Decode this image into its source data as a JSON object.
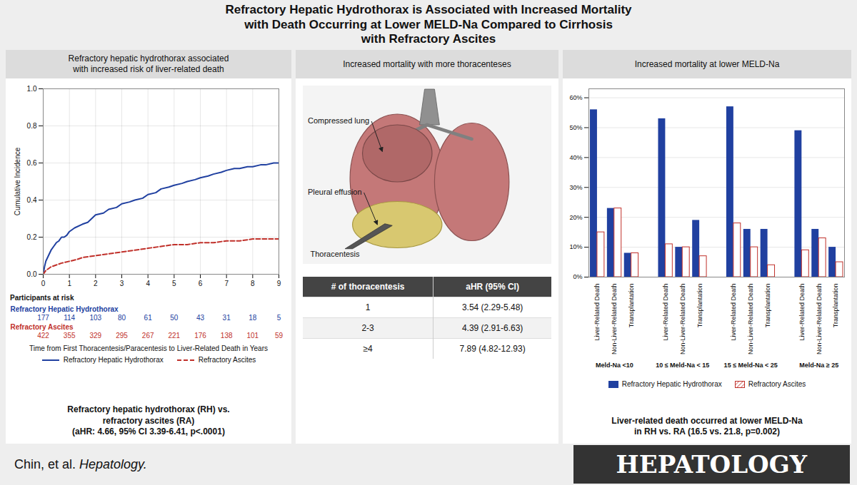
{
  "title": "Refractory Hepatic Hydrothorax is Associated with Increased Mortality\nwith Death Occurring at Lower MELD-Na Compared to Cirrhosis\nwith Refractory Ascites",
  "annotations": [
    "Chin, et al.",
    "Hepatology.",
    "HEPATOLOGY"
  ],
  "chart_data": [
    {
      "type": "line",
      "subtitle": "Refractory hepatic hydrothorax associated\nwith increased risk of liver-related death",
      "xlabel": "Time from First Thoracentesis/Paracentesis to Liver-Related Death in Years",
      "ylabel": "Cumulative Incidence",
      "xlim": [
        0,
        9
      ],
      "xticks": [
        0,
        1,
        2,
        3,
        4,
        5,
        6,
        7,
        8,
        9
      ],
      "ylim": [
        0,
        1.0
      ],
      "yticks": [
        {
          "value": 0.0,
          "label": "0.0"
        },
        {
          "value": 0.2,
          "label": "0.2"
        },
        {
          "value": 0.4,
          "label": "0.4"
        },
        {
          "value": 0.6,
          "label": "0.6"
        },
        {
          "value": 0.8,
          "label": "0.8"
        },
        {
          "value": 1.0,
          "label": "1.0"
        }
      ],
      "grid": true,
      "legend": "bottom",
      "series": [
        {
          "name": "Refractory Hepatic Hydrothorax",
          "color": "#2040a0",
          "line_style": "solid",
          "x": [
            0,
            0.05,
            0.1,
            0.2,
            0.3,
            0.4,
            0.5,
            0.6,
            0.7,
            0.8,
            0.9,
            1.0,
            1.2,
            1.5,
            1.7,
            2.0,
            2.3,
            2.5,
            2.8,
            3.0,
            3.3,
            3.5,
            3.8,
            4.0,
            4.3,
            4.5,
            4.8,
            5.0,
            5.3,
            5.5,
            5.8,
            6.0,
            6.3,
            6.5,
            6.8,
            7.0,
            7.3,
            7.5,
            7.8,
            8.0,
            8.3,
            8.5,
            8.8,
            9.0
          ],
          "values": [
            0,
            0.04,
            0.07,
            0.1,
            0.13,
            0.15,
            0.17,
            0.18,
            0.2,
            0.2,
            0.21,
            0.23,
            0.25,
            0.27,
            0.28,
            0.32,
            0.33,
            0.35,
            0.36,
            0.38,
            0.39,
            0.4,
            0.41,
            0.43,
            0.44,
            0.46,
            0.47,
            0.48,
            0.49,
            0.5,
            0.51,
            0.52,
            0.53,
            0.54,
            0.55,
            0.56,
            0.57,
            0.57,
            0.58,
            0.58,
            0.59,
            0.59,
            0.6,
            0.6
          ],
          "at_risk": [
            177,
            114,
            103,
            80,
            61,
            50,
            43,
            31,
            18,
            5
          ]
        },
        {
          "name": "Refractory Ascites",
          "color": "#c0302a",
          "line_style": "dashed",
          "x": [
            0,
            0.05,
            0.1,
            0.2,
            0.3,
            0.5,
            0.7,
            1.0,
            1.3,
            1.5,
            2.0,
            2.5,
            3.0,
            3.5,
            4.0,
            4.5,
            5.0,
            5.5,
            6.0,
            6.5,
            7.0,
            7.5,
            8.0,
            8.5,
            9.0
          ],
          "values": [
            0,
            0.01,
            0.02,
            0.03,
            0.04,
            0.05,
            0.06,
            0.07,
            0.08,
            0.09,
            0.1,
            0.11,
            0.12,
            0.13,
            0.14,
            0.15,
            0.16,
            0.16,
            0.17,
            0.17,
            0.18,
            0.18,
            0.19,
            0.19,
            0.19
          ],
          "at_risk": [
            422,
            355,
            329,
            295,
            267,
            221,
            176,
            138,
            101,
            59
          ]
        }
      ],
      "annotations": [
        "Participants at risk",
        "Refractory hepatic hydrothorax (RH) vs.\nrefractory ascites (RA)\n(aHR: 4.66, 95% CI 3.39-6.41, p<.0001)"
      ]
    },
    {
      "type": "table",
      "subtitle": "Increased mortality with more thoracenteses",
      "columns": [
        "# of thoracentesis",
        "aHR (95% CI)"
      ],
      "rows": [
        [
          "1",
          "3.54 (2.29-5.48)"
        ],
        [
          "2-3",
          "4.39 (2.91-6.63)"
        ],
        [
          "≥4",
          "7.89 (4.82-12.93)"
        ]
      ],
      "annotations": [
        "Compressed lung",
        "Pleural effusion",
        "Thoracentesis"
      ]
    },
    {
      "type": "bar",
      "subtitle": "Increased mortality at lower MELD-Na",
      "categories": [
        "Meld-Na <10",
        "10 ≤ Meld-Na < 15",
        "15 ≤ Meld-Na < 25",
        "Meld-Na ≥ 25"
      ],
      "subcategories": [
        "Liver-Related Death",
        "Non-Liver-Related Death",
        "Transplantation"
      ],
      "ylim": [
        0,
        63
      ],
      "yticks": [
        {
          "value": 0,
          "label": "0%"
        },
        {
          "value": 10,
          "label": "10%"
        },
        {
          "value": 20,
          "label": "20%"
        },
        {
          "value": 30,
          "label": "30%"
        },
        {
          "value": 40,
          "label": "40%"
        },
        {
          "value": 50,
          "label": "50%"
        },
        {
          "value": 60,
          "label": "60%"
        }
      ],
      "grid": true,
      "legend": "bottom",
      "series": [
        {
          "name": "Refractory Hepatic Hydrothorax",
          "color": "#2040a0",
          "values": [
            [
              56,
              23,
              8
            ],
            [
              53,
              10,
              19
            ],
            [
              57,
              16,
              16
            ],
            [
              49,
              16,
              10
            ]
          ]
        },
        {
          "name": "Refractory Ascites",
          "color": "#c0302a",
          "values": [
            [
              15,
              23,
              8
            ],
            [
              11,
              10,
              7
            ],
            [
              18,
              10,
              4
            ],
            [
              9,
              13,
              5
            ]
          ]
        }
      ],
      "annotations": [
        "Liver-related death occurred at lower MELD-Na\nin RH vs. RA (16.5 vs. 21.8, p=0.002)"
      ]
    }
  ]
}
